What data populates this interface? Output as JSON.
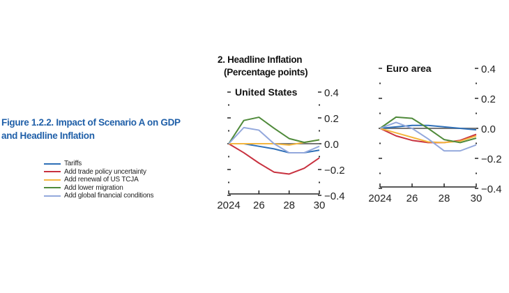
{
  "figure_title": [
    "Figure 1.2.2.  Impact of Scenario A on GDP",
    "and Headline Inflation"
  ],
  "panel_title": [
    "2. Headline Inflation",
    "(Percentage points)"
  ],
  "legend": [
    {
      "label": "Tariffs",
      "color": "#2e6fb7"
    },
    {
      "label": "Add trade policy uncertainty",
      "color": "#c8313f"
    },
    {
      "label": "Add renewal of US TCJA",
      "color": "#f4b63f"
    },
    {
      "label": "Add lower migration",
      "color": "#4f8a3a"
    },
    {
      "label": "Add global financial conditions",
      "color": "#93a8dc"
    }
  ],
  "chart_data": [
    {
      "type": "line",
      "title": "United States",
      "x": [
        2024,
        2025,
        2026,
        2027,
        2028,
        2029,
        2030
      ],
      "xticks": [
        "2024",
        "26",
        "28",
        "30"
      ],
      "yticks": [
        "0.4",
        "0.2",
        "0.0",
        "−0.2",
        "−0.4"
      ],
      "ylim": [
        -0.4,
        0.4
      ],
      "series": [
        {
          "name": "Tariffs",
          "values": [
            0,
            0,
            -0.02,
            -0.04,
            -0.07,
            -0.07,
            -0.05
          ]
        },
        {
          "name": "Add trade policy uncertainty",
          "values": [
            0,
            -0.07,
            -0.15,
            -0.22,
            -0.235,
            -0.19,
            -0.11
          ]
        },
        {
          "name": "Add renewal of US TCJA",
          "values": [
            0,
            0,
            0,
            0,
            -0.01,
            0.01,
            0.03
          ]
        },
        {
          "name": "Add lower migration",
          "values": [
            0,
            0.18,
            0.205,
            0.12,
            0.04,
            0.01,
            0.03
          ]
        },
        {
          "name": "Add global financial conditions",
          "values": [
            0,
            0.125,
            0.105,
            0,
            -0.07,
            -0.07,
            -0.02
          ]
        }
      ]
    },
    {
      "type": "line",
      "title": "Euro area",
      "x": [
        2024,
        2025,
        2026,
        2027,
        2028,
        2029,
        2030
      ],
      "xticks": [
        "2024",
        "26",
        "28",
        "30"
      ],
      "yticks": [
        "0.4",
        "0.2",
        "0.0",
        "−0.2",
        "−0.4"
      ],
      "ylim": [
        -0.4,
        0.4
      ],
      "series": [
        {
          "name": "Tariffs",
          "values": [
            0,
            0.01,
            0.02,
            0.02,
            0.01,
            0,
            -0.01
          ]
        },
        {
          "name": "Add trade policy uncertainty",
          "values": [
            0,
            -0.05,
            -0.08,
            -0.095,
            -0.095,
            -0.08,
            -0.04
          ]
        },
        {
          "name": "Add renewal of US TCJA",
          "values": [
            0,
            -0.03,
            -0.06,
            -0.09,
            -0.095,
            -0.085,
            -0.05
          ]
        },
        {
          "name": "Add lower migration",
          "values": [
            0,
            0.075,
            0.067,
            0,
            -0.075,
            -0.095,
            -0.065
          ]
        },
        {
          "name": "Add global financial conditions",
          "values": [
            0,
            0.04,
            0,
            -0.07,
            -0.15,
            -0.15,
            -0.11
          ]
        }
      ]
    }
  ]
}
